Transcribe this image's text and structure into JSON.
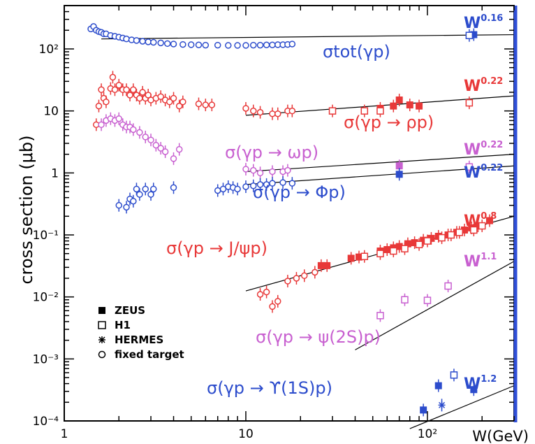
{
  "chart_data": {
    "type": "scatter",
    "title": "",
    "xlabel": "W(GeV)",
    "ylabel": "cross section (μb)",
    "xscale": "log",
    "yscale": "log",
    "xlim": [
      1,
      300
    ],
    "ylim": [
      0.0001,
      500
    ],
    "x_ticks": [
      "1",
      "10",
      "10²"
    ],
    "y_ticks": [
      "10⁻⁴",
      "10⁻³",
      "10⁻²",
      "10⁻¹",
      "1",
      "10",
      "10²"
    ],
    "x_tick_values": [
      1,
      10,
      100
    ],
    "y_tick_values": [
      0.0001,
      0.001,
      0.01,
      0.1,
      1,
      10,
      100
    ],
    "legend": {
      "position": "bottom-left",
      "entries": [
        {
          "label": "ZEUS",
          "marker": "filled-square"
        },
        {
          "label": "H1",
          "marker": "open-square"
        },
        {
          "label": "HERMES",
          "marker": "star"
        },
        {
          "label": "fixed target",
          "marker": "open-circle"
        }
      ]
    },
    "colors": {
      "total": "#2c4ccc",
      "rho": "#e83838",
      "omega": "#c860d0",
      "phi": "#2c4ccc",
      "jpsi": "#e83838",
      "psi2s": "#c860d0",
      "upsilon": "#2c4ccc",
      "fit": "#000000",
      "frame_right": "#2f4fd8"
    },
    "series": [
      {
        "key": "total",
        "process_label": "σtot(γp)",
        "power_law": "W",
        "exponent": "0.16",
        "fit": {
          "x": [
            1.6,
            300
          ],
          "y": [
            145,
            170
          ]
        },
        "fixed_target": [
          [
            1.4,
            210
          ],
          [
            1.45,
            230
          ],
          [
            1.5,
            200
          ],
          [
            1.55,
            190
          ],
          [
            1.6,
            185
          ],
          [
            1.65,
            175
          ],
          [
            1.7,
            175
          ],
          [
            1.8,
            165
          ],
          [
            1.9,
            160
          ],
          [
            2.0,
            155
          ],
          [
            2.1,
            150
          ],
          [
            2.2,
            145
          ],
          [
            2.35,
            140
          ],
          [
            2.5,
            137
          ],
          [
            2.7,
            133
          ],
          [
            2.9,
            130
          ],
          [
            3.1,
            128
          ],
          [
            3.4,
            125
          ],
          [
            3.7,
            122
          ],
          [
            4.0,
            120
          ],
          [
            4.5,
            118
          ],
          [
            5.0,
            117
          ],
          [
            5.5,
            116
          ],
          [
            6.0,
            115
          ],
          [
            7.0,
            115
          ],
          [
            8.0,
            114
          ],
          [
            9.0,
            114
          ],
          [
            10,
            114
          ],
          [
            11,
            115
          ],
          [
            12,
            115
          ],
          [
            13,
            116
          ],
          [
            14,
            116
          ],
          [
            15,
            117
          ],
          [
            16,
            117
          ],
          [
            17,
            118
          ],
          [
            18,
            120
          ]
        ],
        "ZEUS": [
          [
            180,
            170
          ]
        ],
        "H1": [
          [
            170,
            165
          ]
        ]
      },
      {
        "key": "rho",
        "process_label": "σ(γp → ρp)",
        "power_law": "W",
        "exponent": "0.22",
        "fit": {
          "x": [
            10,
            300
          ],
          "y": [
            8.5,
            17.5
          ]
        },
        "fixed_target": [
          [
            1.5,
            6.0
          ],
          [
            1.55,
            12
          ],
          [
            1.6,
            22
          ],
          [
            1.65,
            16
          ],
          [
            1.7,
            14
          ],
          [
            1.8,
            23
          ],
          [
            1.85,
            35
          ],
          [
            1.9,
            22
          ],
          [
            2.0,
            26
          ],
          [
            2.1,
            22
          ],
          [
            2.2,
            22
          ],
          [
            2.3,
            18
          ],
          [
            2.4,
            22
          ],
          [
            2.5,
            18
          ],
          [
            2.6,
            16
          ],
          [
            2.7,
            20
          ],
          [
            2.8,
            16
          ],
          [
            2.9,
            18
          ],
          [
            3.0,
            15
          ],
          [
            3.2,
            16
          ],
          [
            3.4,
            17
          ],
          [
            3.6,
            15
          ],
          [
            3.8,
            14
          ],
          [
            4.0,
            16
          ],
          [
            4.3,
            12
          ],
          [
            4.5,
            14
          ],
          [
            5.5,
            13
          ],
          [
            6.0,
            12.5
          ],
          [
            6.5,
            12.5
          ],
          [
            10,
            11
          ],
          [
            11,
            10
          ],
          [
            12,
            9.5
          ],
          [
            14,
            9
          ],
          [
            15,
            9
          ],
          [
            17,
            10
          ],
          [
            18,
            10
          ]
        ],
        "ZEUS": [
          [
            55,
            11
          ],
          [
            65,
            12
          ],
          [
            70,
            15
          ],
          [
            80,
            12.5
          ],
          [
            90,
            12
          ]
        ],
        "H1": [
          [
            30,
            10
          ],
          [
            45,
            10
          ],
          [
            55,
            10
          ],
          [
            170,
            13.5
          ]
        ]
      },
      {
        "key": "omega",
        "process_label": "σ(γp → ωp)",
        "power_law": "W",
        "exponent": "0.22",
        "fit": {
          "x": [
            10,
            300
          ],
          "y": [
            1.05,
            2.0
          ]
        },
        "fixed_target": [
          [
            1.6,
            6
          ],
          [
            1.7,
            7
          ],
          [
            1.8,
            7.5
          ],
          [
            1.9,
            7
          ],
          [
            2.0,
            7.5
          ],
          [
            2.1,
            6
          ],
          [
            2.2,
            5.5
          ],
          [
            2.3,
            5.5
          ],
          [
            2.4,
            5
          ],
          [
            2.6,
            4.5
          ],
          [
            2.8,
            3.8
          ],
          [
            3.0,
            3.4
          ],
          [
            3.2,
            2.8
          ],
          [
            3.4,
            2.5
          ],
          [
            3.6,
            2.2
          ],
          [
            4.0,
            1.7
          ],
          [
            4.3,
            2.4
          ],
          [
            10,
            1.15
          ],
          [
            11,
            1.1
          ],
          [
            12,
            1.0
          ],
          [
            14,
            1.05
          ],
          [
            16,
            1.05
          ],
          [
            17,
            1.1
          ]
        ],
        "ZEUS": [
          [
            70,
            1.3
          ]
        ],
        "H1": [
          [
            170,
            1.25
          ]
        ]
      },
      {
        "key": "phi",
        "process_label": "σ(γp → Φp)",
        "power_law": "W",
        "exponent": "0.22",
        "fit": {
          "x": [
            10,
            300
          ],
          "y": [
            0.65,
            1.3
          ]
        },
        "fixed_target": [
          [
            2.0,
            0.3
          ],
          [
            2.2,
            0.28
          ],
          [
            2.3,
            0.38
          ],
          [
            2.4,
            0.35
          ],
          [
            2.5,
            0.55
          ],
          [
            2.6,
            0.45
          ],
          [
            2.8,
            0.55
          ],
          [
            3.0,
            0.45
          ],
          [
            3.1,
            0.55
          ],
          [
            4.0,
            0.58
          ],
          [
            7.0,
            0.52
          ],
          [
            7.5,
            0.55
          ],
          [
            8.0,
            0.6
          ],
          [
            8.5,
            0.58
          ],
          [
            9.0,
            0.55
          ],
          [
            10,
            0.6
          ],
          [
            11,
            0.62
          ],
          [
            12,
            0.65
          ],
          [
            13,
            0.65
          ],
          [
            14,
            0.68
          ],
          [
            16,
            0.7
          ],
          [
            18,
            0.68
          ]
        ],
        "ZEUS": [
          [
            70,
            0.95
          ]
        ],
        "H1": []
      },
      {
        "key": "jpsi",
        "process_label": "σ(γp → J/ψp)",
        "power_law": "W",
        "exponent": "0.8",
        "fit": {
          "x": [
            10,
            300
          ],
          "y": [
            0.0125,
            0.2
          ]
        },
        "fixed_target": [
          [
            12,
            0.011
          ],
          [
            13,
            0.012
          ],
          [
            14,
            0.007
          ],
          [
            15,
            0.0085
          ],
          [
            17,
            0.018
          ],
          [
            19,
            0.02
          ],
          [
            21,
            0.022
          ],
          [
            24,
            0.025
          ]
        ],
        "ZEUS": [
          [
            26,
            0.032
          ],
          [
            28,
            0.032
          ],
          [
            38,
            0.042
          ],
          [
            42,
            0.044
          ],
          [
            55,
            0.055
          ],
          [
            60,
            0.058
          ],
          [
            65,
            0.062
          ],
          [
            70,
            0.065
          ],
          [
            78,
            0.072
          ],
          [
            85,
            0.075
          ],
          [
            95,
            0.082
          ],
          [
            105,
            0.088
          ],
          [
            115,
            0.095
          ],
          [
            130,
            0.1
          ],
          [
            145,
            0.11
          ],
          [
            160,
            0.12
          ],
          [
            175,
            0.13
          ],
          [
            190,
            0.14
          ],
          [
            220,
            0.17
          ]
        ],
        "H1": [
          [
            45,
            0.045
          ],
          [
            55,
            0.05
          ],
          [
            65,
            0.055
          ],
          [
            75,
            0.06
          ],
          [
            90,
            0.07
          ],
          [
            100,
            0.08
          ],
          [
            120,
            0.09
          ],
          [
            135,
            0.1
          ],
          [
            150,
            0.11
          ],
          [
            180,
            0.12
          ],
          [
            200,
            0.14
          ]
        ]
      },
      {
        "key": "psi2s",
        "process_label": "σ(γp → ψ(2S)p)",
        "power_law": "W",
        "exponent": "1.1",
        "fit": {
          "x": [
            40,
            300
          ],
          "y": [
            0.0014,
            0.0375
          ]
        },
        "fixed_target": [],
        "ZEUS": [],
        "H1": [
          [
            55,
            0.005
          ],
          [
            75,
            0.009
          ],
          [
            100,
            0.0088
          ],
          [
            130,
            0.015
          ]
        ]
      },
      {
        "key": "upsilon",
        "process_label": "σ(γp → ϒ(1S)p)",
        "power_law": "W",
        "exponent": "1.2",
        "fit": {
          "x": [
            80,
            300
          ],
          "y": [
            7.5e-05,
            0.00037
          ]
        },
        "fixed_target": [],
        "ZEUS": [
          [
            95,
            0.00015
          ],
          [
            115,
            0.00037
          ],
          [
            180,
            0.00032
          ]
        ],
        "H1": [
          [
            140,
            0.00055
          ]
        ],
        "HERMES": [
          [
            120,
            0.00018
          ]
        ]
      }
    ]
  }
}
